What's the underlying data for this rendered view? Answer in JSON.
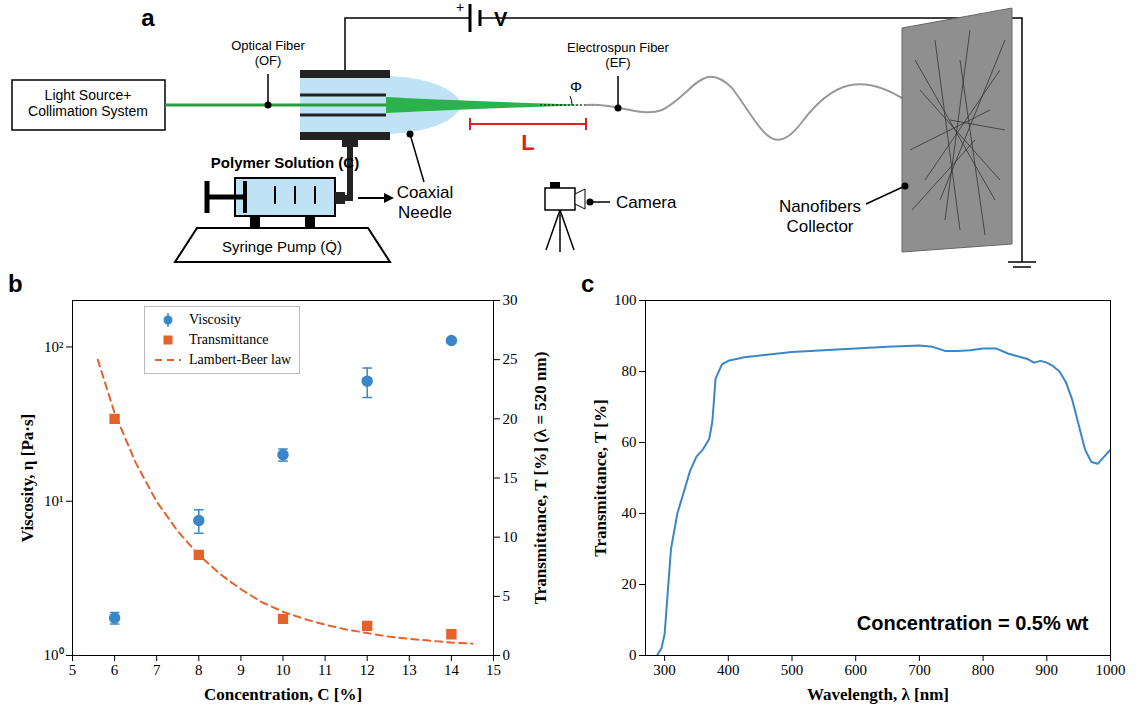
{
  "diagram": {
    "letter": "a",
    "light_source": [
      "Light Source+",
      "Collimation System"
    ],
    "optical_fiber": [
      "Optical Fiber",
      "(OF)"
    ],
    "voltage_sign": "+",
    "voltage": "V",
    "electrospun_fiber": [
      "Electrospun Fiber",
      "(EF)"
    ],
    "angle": "Φ",
    "length": "L",
    "polymer_solution": "Polymer Solution (C)",
    "syringe_pump": "Syringe Pump (Q̇)",
    "needle": [
      "Coaxial",
      "Needle"
    ],
    "camera": "Camera",
    "collector": [
      "Nanofibers",
      "Collector"
    ]
  },
  "chart_data": [
    {
      "panel": "b",
      "type": "scatter",
      "x_label": "Concentration, C [%]",
      "y_label": "Viscosity, η [Pa·s]",
      "y2_label": "Transmittance, T [%] (λ = 520 nm)",
      "xlim": [
        5,
        15
      ],
      "xticks": [
        5,
        6,
        7,
        8,
        9,
        10,
        11,
        12,
        13,
        14,
        15
      ],
      "ylim": [
        1,
        200
      ],
      "yticks": [
        {
          "value": 1,
          "label": "10⁰"
        },
        {
          "value": 10,
          "label": "10¹"
        },
        {
          "value": 100,
          "label": "10²"
        }
      ],
      "log": "y",
      "y2lim": [
        0,
        30
      ],
      "y2ticks": [
        0,
        5,
        10,
        15,
        20,
        25,
        30
      ],
      "legend": "upper center",
      "series": [
        {
          "name": "Viscosity",
          "type": "scatter",
          "marker": "circle",
          "color": "#3b86c6",
          "x": [
            6,
            8,
            10,
            12,
            14
          ],
          "values": [
            1.75,
            7.5,
            20,
            60,
            110
          ],
          "error": [
            0.15,
            1.3,
            1.8,
            13,
            3
          ]
        },
        {
          "name": "Transmittance",
          "type": "scatter",
          "marker": "square",
          "color": "#e4622b",
          "axis": "y2",
          "x": [
            6,
            8,
            10,
            12,
            14
          ],
          "values": [
            20,
            8.5,
            3.1,
            2.5,
            1.8
          ]
        },
        {
          "name": "Lambert-Beer law",
          "type": "line",
          "line_style": "dashed",
          "color": "#e4622b",
          "axis": "y2",
          "x": [
            5.6,
            6,
            6.5,
            7,
            7.5,
            8,
            8.5,
            9,
            9.5,
            10,
            10.5,
            11,
            11.5,
            12,
            12.5,
            13,
            13.5,
            14,
            14.5
          ],
          "values": [
            25,
            20.5,
            16.3,
            13,
            10.5,
            8.5,
            6.9,
            5.6,
            4.5,
            3.7,
            3.1,
            2.6,
            2.2,
            1.9,
            1.6,
            1.4,
            1.25,
            1.1,
            1.0
          ]
        }
      ]
    },
    {
      "panel": "c",
      "type": "line",
      "x_label": "Wavelength, λ [nm]",
      "y_label": "Transmittance, T [%]",
      "xlim": [
        270,
        1000
      ],
      "xticks": [
        300,
        400,
        500,
        600,
        700,
        800,
        900,
        1000
      ],
      "ylim": [
        0,
        100
      ],
      "yticks": [
        0,
        20,
        40,
        60,
        80,
        100
      ],
      "annotation": "Concentration = 0.5% wt",
      "series": [
        {
          "color": "#3b86c6",
          "x": [
            288,
            295,
            300,
            305,
            310,
            320,
            330,
            340,
            350,
            360,
            370,
            375,
            380,
            390,
            400,
            425,
            450,
            500,
            550,
            600,
            650,
            700,
            720,
            740,
            760,
            780,
            800,
            820,
            840,
            860,
            870,
            880,
            890,
            900,
            910,
            920,
            930,
            940,
            950,
            960,
            970,
            980,
            990,
            1000
          ],
          "values": [
            0,
            2,
            6,
            18,
            30,
            40,
            46,
            52,
            56,
            58,
            61,
            66,
            78,
            82,
            83,
            84,
            84.5,
            85.5,
            86,
            86.5,
            87,
            87.3,
            87,
            85.8,
            85.8,
            86,
            86.5,
            86.5,
            85,
            84,
            83.5,
            82.5,
            83,
            82.5,
            81.5,
            80,
            77,
            72,
            65,
            58,
            54.5,
            54,
            56,
            58
          ]
        }
      ]
    }
  ]
}
